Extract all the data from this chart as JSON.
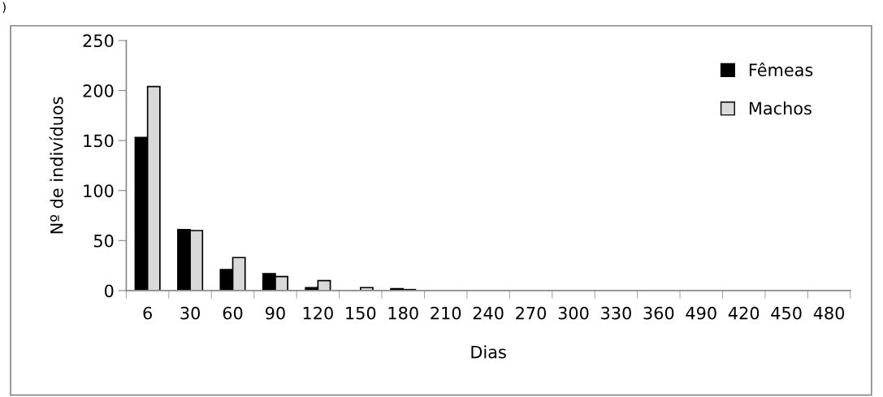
{
  "chart_data": {
    "type": "bar",
    "xlabel": "Dias",
    "ylabel": "Nº de indivíduos",
    "categories": [
      "6",
      "30",
      "60",
      "90",
      "120",
      "150",
      "180",
      "210",
      "240",
      "270",
      "300",
      "330",
      "360",
      "490",
      "420",
      "450",
      "480"
    ],
    "series": [
      {
        "name": "Fêmeas",
        "color": "#000000",
        "values": [
          153,
          61,
          21,
          17,
          3,
          0,
          2,
          0,
          0,
          0,
          0,
          0,
          0,
          0,
          0,
          0,
          0
        ]
      },
      {
        "name": "Machos",
        "color": "#d9d9d9",
        "values": [
          204,
          60,
          33,
          14,
          10,
          3,
          1,
          0,
          0,
          0,
          0,
          0,
          0,
          0,
          0,
          0,
          0
        ]
      }
    ],
    "ylim": [
      0,
      250
    ],
    "yticks": [
      0,
      50,
      100,
      150,
      200,
      250
    ],
    "grid": false,
    "legend": "top right",
    "annotations": [
      ")"
    ]
  }
}
